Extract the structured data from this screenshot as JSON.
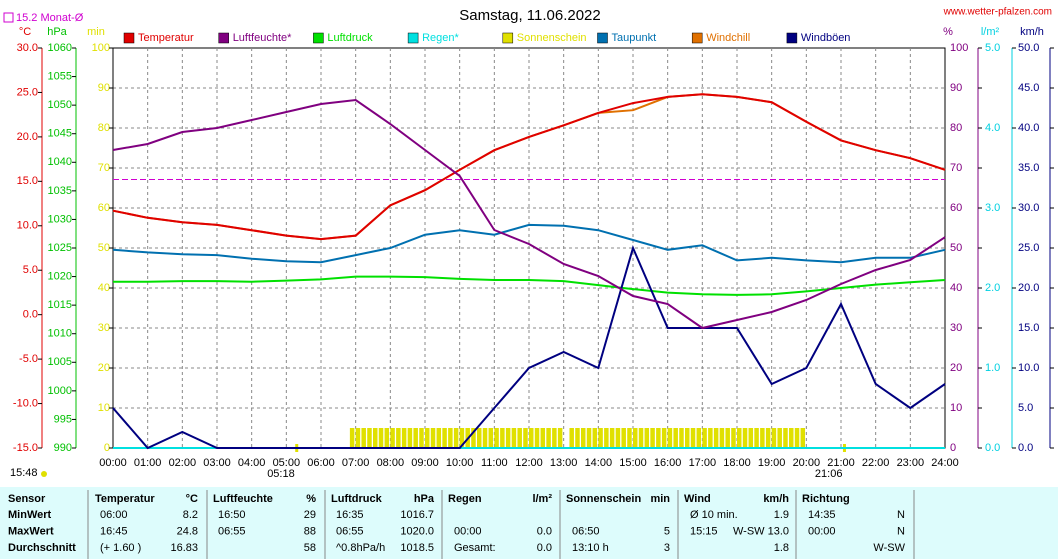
{
  "chart_data": {
    "type": "line",
    "title": "Samstag, 11.06.2022",
    "site": "www.wetter-pfalzen.com",
    "time": "15:48",
    "sunrise": "05:18",
    "sunset": "21:06",
    "monthly_avg": {
      "value": 15.2,
      "label": "15.2 Monat-Ø",
      "color": "#d000d0"
    },
    "grid": true,
    "categories": [
      "00:00",
      "01:00",
      "02:00",
      "03:00",
      "04:00",
      "05:00",
      "06:00",
      "07:00",
      "08:00",
      "09:00",
      "10:00",
      "11:00",
      "12:00",
      "13:00",
      "14:00",
      "15:00",
      "16:00",
      "17:00",
      "18:00",
      "19:00",
      "20:00",
      "21:00",
      "22:00",
      "23:00",
      "24:00"
    ],
    "axes": {
      "temp": {
        "unit": "°C",
        "color": "#e00000",
        "lim": [
          -15,
          30
        ],
        "ticks": [
          {
            "value": -15,
            "label": "-15.0"
          },
          {
            "value": -10,
            "label": "-10.0"
          },
          {
            "value": -5,
            "label": "-5.0"
          },
          {
            "value": 0,
            "label": "0.0"
          },
          {
            "value": 5,
            "label": "5.0"
          },
          {
            "value": 10,
            "label": "10.0"
          },
          {
            "value": 15,
            "label": "15.0"
          },
          {
            "value": 20,
            "label": "20.0"
          },
          {
            "value": 25,
            "label": "25.0"
          },
          {
            "value": 30,
            "label": "30.0"
          }
        ]
      },
      "press": {
        "unit": "hPa",
        "color": "#00c000",
        "lim": [
          990,
          1060
        ],
        "ticks": [
          990,
          995,
          1000,
          1005,
          1010,
          1015,
          1020,
          1025,
          1030,
          1035,
          1040,
          1045,
          1050,
          1055,
          1060
        ]
      },
      "sun": {
        "unit": "min",
        "color": "#e0e000",
        "lim": [
          0,
          100
        ],
        "ticks": [
          0,
          10,
          20,
          30,
          40,
          50,
          60,
          70,
          80,
          90,
          100
        ]
      },
      "hum": {
        "unit": "%",
        "color": "#800080",
        "lim": [
          0,
          100
        ],
        "ticks": [
          0,
          10,
          20,
          30,
          40,
          50,
          60,
          70,
          80,
          90,
          100
        ]
      },
      "rain": {
        "unit": "l/m²",
        "color": "#00d0e0",
        "lim": [
          0,
          5
        ],
        "ticks": [
          {
            "value": 0,
            "label": "0.0"
          },
          {
            "value": 1,
            "label": "1.0"
          },
          {
            "value": 2,
            "label": "2.0"
          },
          {
            "value": 3,
            "label": "3.0"
          },
          {
            "value": 4,
            "label": "4.0"
          },
          {
            "value": 5,
            "label": "5.0"
          }
        ]
      },
      "wind": {
        "unit": "km/h",
        "color": "#000080",
        "lim": [
          0,
          50
        ],
        "ticks": [
          {
            "value": 0,
            "label": "0.0"
          },
          {
            "value": 5,
            "label": "5.0"
          },
          {
            "value": 10,
            "label": "10.0"
          },
          {
            "value": 15,
            "label": "15.0"
          },
          {
            "value": 20,
            "label": "20.0"
          },
          {
            "value": 25,
            "label": "25.0"
          },
          {
            "value": 30,
            "label": "30.0"
          },
          {
            "value": 35,
            "label": "35.0"
          },
          {
            "value": 40,
            "label": "40.0"
          },
          {
            "value": 45,
            "label": "45.0"
          },
          {
            "value": 50,
            "label": "50.0"
          }
        ]
      }
    },
    "series": [
      {
        "name": "Temperatur",
        "color": "#e00000",
        "axis": "temp",
        "values": [
          11.7,
          10.9,
          10.4,
          10.1,
          9.5,
          8.9,
          8.5,
          8.9,
          12.3,
          14.0,
          16.3,
          18.5,
          20.0,
          21.3,
          22.7,
          23.8,
          24.5,
          24.8,
          24.5,
          23.9,
          21.7,
          19.6,
          18.5,
          17.6,
          16.3
        ]
      },
      {
        "name": "Luftfeuchte*",
        "color": "#800080",
        "axis": "hum",
        "values": [
          74.5,
          76,
          79,
          80,
          82,
          84,
          86,
          87,
          81,
          74.5,
          68,
          54.5,
          51,
          46,
          43,
          38,
          36,
          30,
          32,
          34,
          37,
          41,
          44.5,
          47,
          52.7
        ]
      },
      {
        "name": "Luftdruck",
        "color": "#00e000",
        "axis": "press",
        "values": [
          1019.1,
          1019.1,
          1019.2,
          1019.2,
          1019.1,
          1019.3,
          1019.5,
          1020.0,
          1020.0,
          1019.9,
          1019.6,
          1019.4,
          1019.4,
          1019.2,
          1018.5,
          1017.8,
          1017.2,
          1016.9,
          1016.8,
          1016.9,
          1017.4,
          1018.0,
          1018.6,
          1019.0,
          1019.4
        ]
      },
      {
        "name": "Regen*",
        "color": "#00e0e0",
        "axis": "rain",
        "values": [
          0,
          0,
          0,
          0,
          0,
          0,
          0,
          0,
          0,
          0,
          0,
          0,
          0,
          0,
          0,
          0,
          0,
          0,
          0,
          0,
          0,
          0,
          0,
          0,
          0
        ]
      },
      {
        "name": "Sonnenschein",
        "color": "#e0e000",
        "axis": "sun",
        "kind": "bars",
        "x": [
          "06:50",
          "07:00",
          "07:10",
          "07:20",
          "07:30",
          "07:40",
          "07:50",
          "08:00",
          "08:10",
          "08:20",
          "08:30",
          "08:40",
          "08:50",
          "09:00",
          "09:10",
          "09:20",
          "09:30",
          "09:40",
          "09:50",
          "10:00",
          "10:10",
          "10:20",
          "10:30",
          "10:40",
          "10:50",
          "11:00",
          "11:10",
          "11:20",
          "11:30",
          "11:40",
          "11:50",
          "12:00",
          "12:10",
          "12:20",
          "12:30",
          "12:40",
          "12:50",
          "13:00",
          "13:10",
          "13:20",
          "13:30",
          "13:40",
          "13:50",
          "14:00",
          "14:10",
          "14:20",
          "14:30",
          "14:40",
          "14:50",
          "15:00",
          "15:10",
          "15:20",
          "15:30",
          "15:40",
          "15:50",
          "16:00",
          "16:10",
          "16:20",
          "16:30",
          "16:40",
          "16:50",
          "17:00",
          "17:10",
          "17:20",
          "17:30",
          "17:40",
          "17:50",
          "18:00",
          "18:10",
          "18:20",
          "18:30",
          "18:40",
          "18:50",
          "19:00",
          "19:10",
          "19:20",
          "19:30",
          "19:40",
          "19:50"
        ],
        "values": [
          5,
          5,
          5,
          5,
          5,
          5,
          5,
          5,
          5,
          5,
          5,
          5,
          5,
          5,
          5,
          5,
          5,
          5,
          5,
          5,
          5,
          5,
          5,
          5,
          5,
          5,
          5,
          5,
          5,
          5,
          5,
          5,
          5,
          5,
          5,
          5,
          5,
          0,
          5,
          5,
          5,
          5,
          5,
          5,
          5,
          5,
          5,
          5,
          5,
          5,
          5,
          5,
          5,
          5,
          5,
          5,
          5,
          5,
          5,
          5,
          5,
          5,
          5,
          5,
          5,
          5,
          5,
          5,
          5,
          5,
          5,
          5,
          5,
          5,
          5,
          5,
          5,
          5,
          5
        ]
      },
      {
        "name": "Taupunkt",
        "color": "#0070b0",
        "axis": "temp",
        "values": [
          7.3,
          7.0,
          6.8,
          6.7,
          6.3,
          6.0,
          5.9,
          6.7,
          7.5,
          9.0,
          9.5,
          9.0,
          10.1,
          10.0,
          9.5,
          8.4,
          7.3,
          7.8,
          6.1,
          6.4,
          6.1,
          5.9,
          6.4,
          6.4,
          7.3
        ]
      },
      {
        "name": "Windchill",
        "color": "#e07000",
        "axis": "temp",
        "values": [
          11.7,
          10.9,
          10.4,
          10.1,
          9.5,
          8.9,
          8.5,
          8.9,
          12.3,
          14.0,
          16.3,
          18.5,
          20.0,
          21.3,
          22.7,
          23.0,
          24.5,
          24.8,
          24.5,
          23.9,
          21.7,
          19.6,
          18.5,
          17.6,
          16.3
        ]
      },
      {
        "name": "Windböen",
        "color": "#000080",
        "axis": "wind",
        "values": [
          5,
          0,
          2,
          0,
          0,
          0,
          0,
          0,
          0,
          0,
          0,
          5,
          10,
          12,
          10,
          25,
          15,
          15,
          15,
          8,
          10,
          18,
          8,
          5,
          8
        ]
      }
    ]
  },
  "table": {
    "header": [
      "Sensor",
      "Temperatur",
      "°C",
      "Luftfeuchte",
      "%",
      "Luftdruck",
      "hPa",
      "Regen",
      "l/m²",
      "Sonnenschein",
      "min",
      "Wind",
      "km/h",
      "Richtung"
    ],
    "rows": [
      [
        "MinWert",
        "06:00",
        "8.2",
        "16:50",
        "29",
        "16:35",
        "1016.7",
        null,
        null,
        null,
        null,
        "Ø 10 min.",
        "1.9",
        "14:35",
        "N"
      ],
      [
        "MaxWert",
        "16:45",
        "24.8",
        "06:55",
        "88",
        "06:55",
        "1020.0",
        "00:00",
        "0.0",
        "06:50",
        "5",
        "15:15",
        "W-SW 13.0",
        "00:00",
        "N"
      ],
      [
        "Durchschnitt",
        "(+ 1.60 )",
        "16.83",
        null,
        "58",
        "^0.8hPa/h",
        "1018.5",
        "Gesamt:",
        "0.0",
        "13:10 h",
        "3",
        null,
        "1.8",
        null,
        "W-SW"
      ]
    ]
  }
}
